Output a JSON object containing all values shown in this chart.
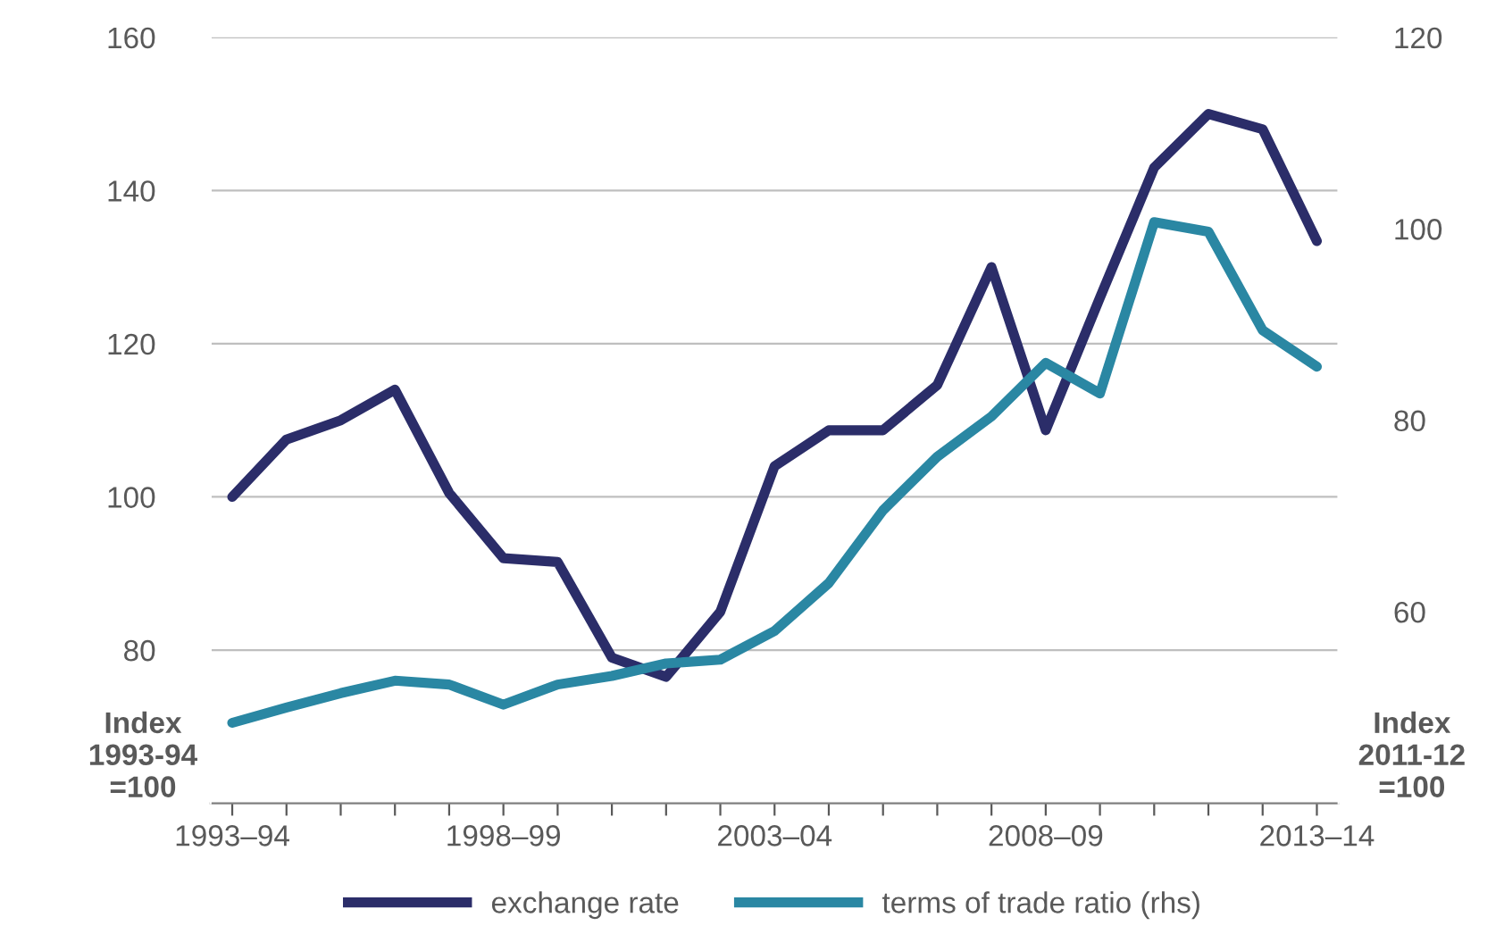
{
  "chart_data": {
    "type": "line",
    "ylabel": "Index\n1993-94\n=100",
    "y2label": "Index\n2011-12\n=100",
    "categories": [
      "1993–94",
      null,
      null,
      null,
      null,
      "1998–99",
      null,
      null,
      null,
      null,
      "2003–04",
      null,
      null,
      null,
      null,
      "2008–09",
      null,
      null,
      null,
      null,
      "2013–14"
    ],
    "ylim": [
      60,
      160
    ],
    "yticks": [
      80,
      100,
      120,
      140,
      160
    ],
    "y2lim": [
      40,
      120
    ],
    "y2ticks": [
      60,
      80,
      100,
      120
    ],
    "grid": "y",
    "legend": "bottom",
    "line_style": "solid",
    "marker": "none",
    "series": [
      {
        "name": "exchange rate",
        "color": "#2b2d69",
        "values": [
          100,
          107.5,
          110,
          114,
          100.5,
          92,
          91.5,
          79,
          76.5,
          85,
          104,
          108.7,
          108.7,
          114.6,
          130,
          108.7,
          126,
          143,
          150,
          148,
          133.4
        ]
      },
      {
        "name": "terms of trade ratio (rhs)",
        "color": "#2a87a3",
        "axis": "y2",
        "values": [
          48.4,
          50,
          51.5,
          52.8,
          52.4,
          50.3,
          52.4,
          53.3,
          54.6,
          55,
          58,
          63,
          70.6,
          76.2,
          80.4,
          86,
          82.8,
          100.7,
          99.7,
          89.4,
          85.6
        ]
      }
    ]
  }
}
